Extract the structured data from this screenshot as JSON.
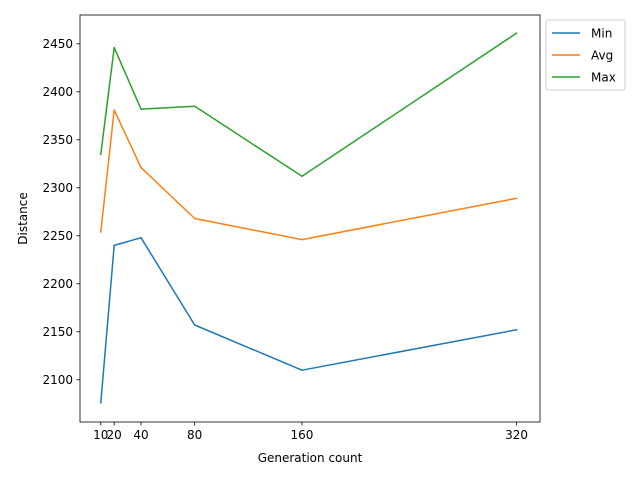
{
  "chart_data": {
    "type": "line",
    "title": "",
    "xlabel": "Generation count",
    "ylabel": "Distance",
    "x": [
      10,
      20,
      40,
      80,
      160,
      320
    ],
    "x_tick_labels": [
      "10",
      "20",
      "40",
      "80",
      "160",
      "320"
    ],
    "y_ticks": [
      2100,
      2150,
      2200,
      2250,
      2300,
      2350,
      2400,
      2450
    ],
    "y_tick_labels": [
      "2100",
      "2150",
      "2200",
      "2250",
      "2300",
      "2350",
      "2400",
      "2450"
    ],
    "xlim": [
      -5.5,
      337.5
    ],
    "ylim": [
      2056,
      2480
    ],
    "grid": false,
    "legend_position": "outside upper right",
    "series": [
      {
        "name": "Min",
        "color": "#1f77b4",
        "values": [
          2076,
          2240,
          2248,
          2157,
          2110,
          2152
        ]
      },
      {
        "name": "Avg",
        "color": "#ff7f0e",
        "values": [
          2254,
          2381,
          2321,
          2268,
          2246,
          2289
        ]
      },
      {
        "name": "Max",
        "color": "#2ca02c",
        "values": [
          2335,
          2446,
          2382,
          2385,
          2312,
          2461
        ]
      }
    ]
  }
}
